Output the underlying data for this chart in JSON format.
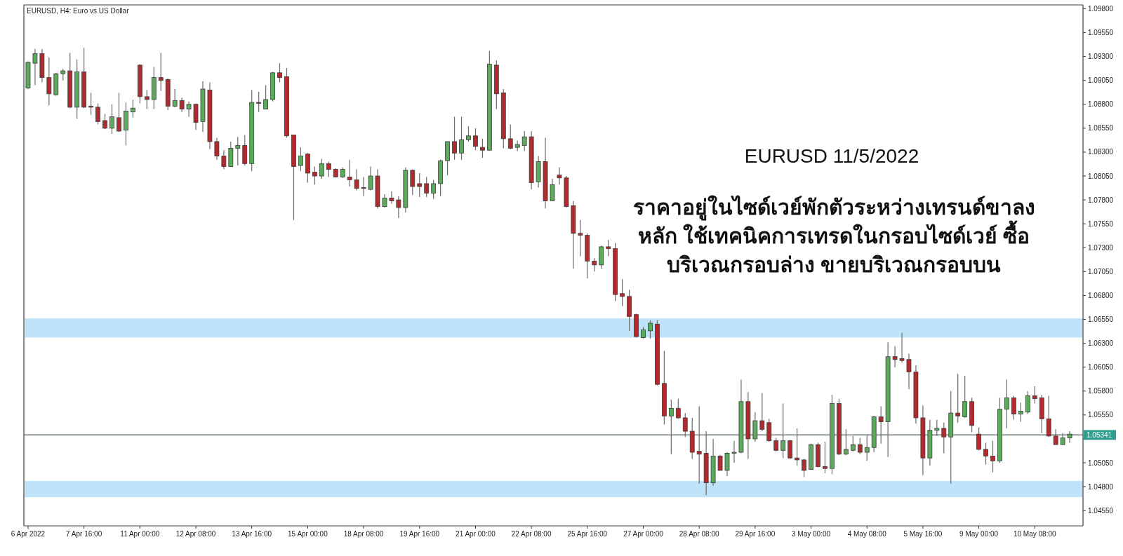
{
  "chart_data": {
    "type": "candlestick",
    "title": "EURUSD, H4: Euro vs US Dollar",
    "categories": [
      "6 Apr 2022",
      null,
      null,
      null,
      null,
      null,
      null,
      null,
      "7 Apr 16:00",
      null,
      null,
      null,
      null,
      null,
      null,
      null,
      "11 Apr 00:00",
      null,
      null,
      null,
      null,
      null,
      null,
      null,
      "12 Apr 08:00",
      null,
      null,
      null,
      null,
      null,
      null,
      null,
      "13 Apr 16:00",
      null,
      null,
      null,
      null,
      null,
      null,
      null,
      "15 Apr 00:00",
      null,
      null,
      null,
      null,
      null,
      null,
      null,
      "18 Apr 08:00",
      null,
      null,
      null,
      null,
      null,
      null,
      null,
      "19 Apr 16:00",
      null,
      null,
      null,
      null,
      null,
      null,
      null,
      "21 Apr 00:00",
      null,
      null,
      null,
      null,
      null,
      null,
      null,
      "22 Apr 08:00",
      null,
      null,
      null,
      null,
      null,
      null,
      null,
      "25 Apr 16:00",
      null,
      null,
      null,
      null,
      null,
      null,
      null,
      "27 Apr 00:00",
      null,
      null,
      null,
      null,
      null,
      null,
      null,
      "28 Apr 08:00",
      null,
      null,
      null,
      null,
      null,
      null,
      null,
      "29 Apr 16:00",
      null,
      null,
      null,
      null,
      null,
      null,
      null,
      "3 May 00:00",
      null,
      null,
      null,
      null,
      null,
      null,
      null,
      "4 May 08:00",
      null,
      null,
      null,
      null,
      null,
      null,
      null,
      "5 May 16:00",
      null,
      null,
      null,
      null,
      null,
      null,
      null,
      "9 May 00:00",
      null,
      null,
      null,
      null,
      null,
      null,
      null,
      "10 May 08:00",
      null,
      null,
      null,
      null,
      null
    ],
    "ohlc": [
      [
        1.0897,
        1.0925,
        1.0896,
        1.0924
      ],
      [
        1.0923,
        1.0938,
        1.09,
        1.0933
      ],
      [
        1.0933,
        1.0938,
        1.0903,
        1.0908
      ],
      [
        1.0908,
        1.0929,
        1.0879,
        1.0891
      ],
      [
        1.089,
        1.0913,
        1.0889,
        1.0912
      ],
      [
        1.0912,
        1.0917,
        1.0905,
        1.0915
      ],
      [
        1.0915,
        1.0934,
        1.0876,
        1.0877
      ],
      [
        1.0877,
        1.0927,
        1.0865,
        1.0914
      ],
      [
        1.0914,
        1.0939,
        1.0876,
        1.0877
      ],
      [
        1.0878,
        1.0892,
        1.0869,
        1.0877
      ],
      [
        1.0877,
        1.0881,
        1.0859,
        1.0862
      ],
      [
        1.0863,
        1.087,
        1.0854,
        1.0855
      ],
      [
        1.0855,
        1.088,
        1.0849,
        1.0867
      ],
      [
        1.0866,
        1.0892,
        1.0851,
        1.0852
      ],
      [
        1.0853,
        1.0882,
        1.0837,
        1.0873
      ],
      [
        1.0872,
        1.0885,
        1.0866,
        1.0876
      ],
      [
        1.0921,
        1.0922,
        1.0881,
        1.0888
      ],
      [
        1.0888,
        1.0895,
        1.0875,
        1.0885
      ],
      [
        1.0885,
        1.0919,
        1.0875,
        1.0908
      ],
      [
        1.0908,
        1.0934,
        1.0894,
        1.0905
      ],
      [
        1.0906,
        1.0907,
        1.0874,
        1.0878
      ],
      [
        1.0878,
        1.0896,
        1.0877,
        1.0884
      ],
      [
        1.0884,
        1.0887,
        1.0872,
        1.0875
      ],
      [
        1.0875,
        1.0883,
        1.0867,
        1.088
      ],
      [
        1.088,
        1.0881,
        1.0853,
        1.0861
      ],
      [
        1.0862,
        1.0904,
        1.0851,
        1.0896
      ],
      [
        1.0895,
        1.0903,
        1.0833,
        1.0841
      ],
      [
        1.0841,
        1.0845,
        1.0822,
        1.0826
      ],
      [
        1.0826,
        1.0832,
        1.0812,
        1.0815
      ],
      [
        1.0815,
        1.0841,
        1.0815,
        1.0834
      ],
      [
        1.0834,
        1.0846,
        1.0816,
        1.0837
      ],
      [
        1.0837,
        1.0848,
        1.0816,
        1.0818
      ],
      [
        1.0818,
        1.0895,
        1.081,
        1.0882
      ],
      [
        1.0882,
        1.0893,
        1.0872,
        1.0881
      ],
      [
        1.0875,
        1.09,
        1.0875,
        1.0885
      ],
      [
        1.0885,
        1.0914,
        1.0883,
        1.0913
      ],
      [
        1.0913,
        1.0923,
        1.0903,
        1.0908
      ],
      [
        1.0909,
        1.0918,
        1.0845,
        1.0847
      ],
      [
        1.0848,
        1.0848,
        1.0759,
        1.0815
      ],
      [
        1.0816,
        1.0835,
        1.081,
        1.0826
      ],
      [
        1.0828,
        1.0829,
        1.0798,
        1.0808
      ],
      [
        1.0809,
        1.0815,
        1.0796,
        1.0805
      ],
      [
        1.0805,
        1.0823,
        1.0802,
        1.0818
      ],
      [
        1.0818,
        1.082,
        1.0804,
        1.0812
      ],
      [
        1.0812,
        1.0813,
        1.0804,
        1.0804
      ],
      [
        1.0804,
        1.0814,
        1.0803,
        1.0812
      ],
      [
        1.0804,
        1.0822,
        1.0794,
        1.0801
      ],
      [
        1.0801,
        1.0812,
        1.079,
        1.0792
      ],
      [
        1.0793,
        1.0804,
        1.0784,
        1.0792
      ],
      [
        1.0791,
        1.0815,
        1.079,
        1.0805
      ],
      [
        1.0805,
        1.0812,
        1.0771,
        1.0773
      ],
      [
        1.0773,
        1.0786,
        1.0772,
        1.0782
      ],
      [
        1.0782,
        1.0789,
        1.0776,
        1.0779
      ],
      [
        1.078,
        1.0784,
        1.0761,
        1.0772
      ],
      [
        1.0772,
        1.0814,
        1.0767,
        1.0811
      ],
      [
        1.0811,
        1.0812,
        1.0785,
        1.0794
      ],
      [
        1.0797,
        1.0808,
        1.0783,
        1.0794
      ],
      [
        1.0797,
        1.0804,
        1.0783,
        1.0787
      ],
      [
        1.0787,
        1.0801,
        1.0781,
        1.0797
      ],
      [
        1.0797,
        1.0822,
        1.0784,
        1.0821
      ],
      [
        1.0821,
        1.0841,
        1.0806,
        1.0841
      ],
      [
        1.0841,
        1.0867,
        1.0822,
        1.0829
      ],
      [
        1.0829,
        1.0867,
        1.0822,
        1.0843
      ],
      [
        1.0843,
        1.0857,
        1.0841,
        1.0847
      ],
      [
        1.0847,
        1.0855,
        1.0832,
        1.0836
      ],
      [
        1.0835,
        1.0844,
        1.0824,
        1.0832
      ],
      [
        1.0832,
        1.0936,
        1.0832,
        1.0922
      ],
      [
        1.0921,
        1.0926,
        1.0875,
        1.0891
      ],
      [
        1.0892,
        1.0896,
        1.0834,
        1.0844
      ],
      [
        1.0844,
        1.0859,
        1.0833,
        1.0834
      ],
      [
        1.0835,
        1.0842,
        1.0831,
        1.0838
      ],
      [
        1.0837,
        1.0852,
        1.0831,
        1.0846
      ],
      [
        1.0846,
        1.0852,
        1.0791,
        1.0798
      ],
      [
        1.0799,
        1.0826,
        1.0793,
        1.082
      ],
      [
        1.082,
        1.0845,
        1.0771,
        1.0779
      ],
      [
        1.0779,
        1.0802,
        1.0779,
        1.0796
      ],
      [
        1.0806,
        1.0814,
        1.0796,
        1.0803
      ],
      [
        1.0803,
        1.0805,
        1.0772,
        1.0773
      ],
      [
        1.0774,
        1.0779,
        1.0708,
        1.0745
      ],
      [
        1.0745,
        1.0759,
        1.0721,
        1.0743
      ],
      [
        1.0743,
        1.0745,
        1.0698,
        1.0716
      ],
      [
        1.0716,
        1.0719,
        1.0705,
        1.0712
      ],
      [
        1.0712,
        1.0732,
        1.0708,
        1.0731
      ],
      [
        1.0731,
        1.0738,
        1.0721,
        1.0729
      ],
      [
        1.0729,
        1.0735,
        1.0674,
        1.0681
      ],
      [
        1.0682,
        1.0697,
        1.0669,
        1.0679
      ],
      [
        1.0679,
        1.0686,
        1.0643,
        1.0658
      ],
      [
        1.066,
        1.0661,
        1.0636,
        1.0637
      ],
      [
        1.0636,
        1.0647,
        1.0635,
        1.0644
      ],
      [
        1.0643,
        1.0654,
        1.0635,
        1.0651
      ],
      [
        1.065,
        1.0654,
        1.0586,
        1.0587
      ],
      [
        1.0588,
        1.0622,
        1.0545,
        1.0554
      ],
      [
        1.0554,
        1.0571,
        1.0514,
        1.0562
      ],
      [
        1.0562,
        1.0572,
        1.0551,
        1.0552
      ],
      [
        1.0552,
        1.0557,
        1.0532,
        1.0538
      ],
      [
        1.0538,
        1.0552,
        1.0509,
        1.0516
      ],
      [
        1.0517,
        1.0564,
        1.0483,
        1.0514
      ],
      [
        1.0515,
        1.0538,
        1.0471,
        1.0484
      ],
      [
        1.0484,
        1.053,
        1.0481,
        1.0512
      ],
      [
        1.0512,
        1.0513,
        1.0497,
        1.0497
      ],
      [
        1.0497,
        1.0516,
        1.0491,
        1.0515
      ],
      [
        1.0515,
        1.0528,
        1.0505,
        1.0516
      ],
      [
        1.0516,
        1.0592,
        1.0515,
        1.0569
      ],
      [
        1.0569,
        1.0579,
        1.0509,
        1.053
      ],
      [
        1.053,
        1.0558,
        1.0527,
        1.0549
      ],
      [
        1.0549,
        1.0578,
        1.0538,
        1.054
      ],
      [
        1.0547,
        1.0551,
        1.0527,
        1.0528
      ],
      [
        1.0528,
        1.0531,
        1.0517,
        1.0518
      ],
      [
        1.0518,
        1.0567,
        1.051,
        1.0528
      ],
      [
        1.0528,
        1.0529,
        1.0509,
        1.051
      ],
      [
        1.051,
        1.0541,
        1.0502,
        1.0508
      ],
      [
        1.0508,
        1.0509,
        1.049,
        1.0497
      ],
      [
        1.0498,
        1.0525,
        1.0498,
        1.0524
      ],
      [
        1.0524,
        1.0526,
        1.05,
        1.0501
      ],
      [
        1.0501,
        1.0527,
        1.0494,
        1.0499
      ],
      [
        1.0499,
        1.0576,
        1.0493,
        1.0567
      ],
      [
        1.0567,
        1.0572,
        1.0513,
        1.0514
      ],
      [
        1.0514,
        1.054,
        1.0513,
        1.0519
      ],
      [
        1.0518,
        1.0533,
        1.0517,
        1.0524
      ],
      [
        1.0524,
        1.0531,
        1.0514,
        1.0516
      ],
      [
        1.0516,
        1.0534,
        1.0507,
        1.0521
      ],
      [
        1.0521,
        1.0554,
        1.0516,
        1.0553
      ],
      [
        1.0553,
        1.0564,
        1.0525,
        1.0548
      ],
      [
        1.0548,
        1.0631,
        1.0511,
        1.0616
      ],
      [
        1.0616,
        1.0627,
        1.0605,
        1.0613
      ],
      [
        1.0614,
        1.0641,
        1.061,
        1.0612
      ],
      [
        1.0613,
        1.0619,
        1.0582,
        1.06
      ],
      [
        1.06,
        1.0607,
        1.0546,
        1.0552
      ],
      [
        1.0552,
        1.0565,
        1.0492,
        1.051
      ],
      [
        1.051,
        1.055,
        1.0502,
        1.0539
      ],
      [
        1.0539,
        1.055,
        1.0533,
        1.0541
      ],
      [
        1.0541,
        1.0547,
        1.0515,
        1.0532
      ],
      [
        1.0532,
        1.058,
        1.0483,
        1.0557
      ],
      [
        1.0557,
        1.0598,
        1.0547,
        1.0554
      ],
      [
        1.0553,
        1.0596,
        1.0552,
        1.0569
      ],
      [
        1.0569,
        1.0573,
        1.0537,
        1.0544
      ],
      [
        1.0535,
        1.0542,
        1.0518,
        1.0519
      ],
      [
        1.0519,
        1.0526,
        1.0503,
        1.0512
      ],
      [
        1.0512,
        1.0528,
        1.0495,
        1.0507
      ],
      [
        1.0507,
        1.0573,
        1.0505,
        1.0561
      ],
      [
        1.0561,
        1.0592,
        1.0541,
        1.0573
      ],
      [
        1.0573,
        1.0575,
        1.055,
        1.0556
      ],
      [
        1.0556,
        1.0568,
        1.0548,
        1.0559
      ],
      [
        1.0558,
        1.058,
        1.0556,
        1.0575
      ],
      [
        1.0575,
        1.0585,
        1.0567,
        1.0572
      ],
      [
        1.0573,
        1.0576,
        1.0536,
        1.0551
      ],
      [
        1.0551,
        1.0575,
        1.0532,
        1.0533
      ],
      [
        1.0533,
        1.054,
        1.0524,
        1.0524
      ],
      [
        1.0524,
        1.0536,
        1.0524,
        1.0531
      ],
      [
        1.0531,
        1.0538,
        1.0526,
        1.0535
      ]
    ],
    "colors": [
      "#5aab5a",
      "#5aab5a",
      "#b22a2e",
      "#b22a2e",
      "#5aab5a",
      "#5aab5a",
      "#b22a2e",
      "#5aab5a",
      "#b22a2e",
      "#b22a2e",
      "#b22a2e",
      "#b22a2e",
      "#5aab5a",
      "#b22a2e",
      "#5aab5a",
      "#5aab5a",
      "#b22a2e",
      "#b22a2e",
      "#5aab5a",
      "#b22a2e",
      "#b22a2e",
      "#5aab5a",
      "#b22a2e",
      "#5aab5a",
      "#b22a2e",
      "#5aab5a",
      "#b22a2e",
      "#b22a2e",
      "#b22a2e",
      "#5aab5a",
      "#5aab5a",
      "#b22a2e",
      "#5aab5a",
      "#b22a2e",
      "#5aab5a",
      "#5aab5a",
      "#b22a2e",
      "#b22a2e",
      "#b22a2e",
      "#5aab5a",
      "#b22a2e",
      "#b22a2e",
      "#5aab5a",
      "#b22a2e",
      "#b22a2e",
      "#5aab5a",
      "#b22a2e",
      "#b22a2e",
      "#b22a2e",
      "#5aab5a",
      "#b22a2e",
      "#5aab5a",
      "#b22a2e",
      "#b22a2e",
      "#5aab5a",
      "#b22a2e",
      "#b22a2e",
      "#b22a2e",
      "#5aab5a",
      "#5aab5a",
      "#5aab5a",
      "#b22a2e",
      "#5aab5a",
      "#5aab5a",
      "#b22a2e",
      "#b22a2e",
      "#5aab5a",
      "#b22a2e",
      "#b22a2e",
      "#b22a2e",
      "#5aab5a",
      "#5aab5a",
      "#b22a2e",
      "#5aab5a",
      "#b22a2e",
      "#5aab5a",
      "#b22a2e",
      "#b22a2e",
      "#b22a2e",
      "#b22a2e",
      "#b22a2e",
      "#b22a2e",
      "#5aab5a",
      "#b22a2e",
      "#b22a2e",
      "#b22a2e",
      "#b22a2e",
      "#b22a2e",
      "#5aab5a",
      "#5aab5a",
      "#b22a2e",
      "#b22a2e",
      "#5aab5a",
      "#b22a2e",
      "#b22a2e",
      "#b22a2e",
      "#b22a2e",
      "#b22a2e",
      "#5aab5a",
      "#b22a2e",
      "#5aab5a",
      "#5aab5a",
      "#5aab5a",
      "#b22a2e",
      "#5aab5a",
      "#b22a2e",
      "#b22a2e",
      "#b22a2e",
      "#5aab5a",
      "#b22a2e",
      "#b22a2e",
      "#b22a2e",
      "#5aab5a",
      "#b22a2e",
      "#b22a2e",
      "#5aab5a",
      "#b22a2e",
      "#5aab5a",
      "#5aab5a",
      "#b22a2e",
      "#5aab5a",
      "#5aab5a",
      "#b22a2e",
      "#5aab5a",
      "#b22a2e",
      "#b22a2e",
      "#b22a2e",
      "#b22a2e",
      "#b22a2e",
      "#5aab5a",
      "#5aab5a",
      "#b22a2e",
      "#5aab5a",
      "#b22a2e",
      "#5aab5a",
      "#b22a2e",
      "#b22a2e",
      "#b22a2e",
      "#b22a2e",
      "#5aab5a",
      "#5aab5a",
      "#b22a2e",
      "#5aab5a",
      "#5aab5a",
      "#b22a2e",
      "#b22a2e",
      "#b22a2e",
      "#b22a2e",
      "#5aab5a",
      "#5aab5a"
    ],
    "ylim": [
      1.0439,
      1.0984
    ],
    "yticks": [
      {
        "value": 1.0455,
        "label": "1.04550"
      },
      {
        "value": 1.048,
        "label": "1.04800"
      },
      {
        "value": 1.0505,
        "label": "1.05050"
      },
      {
        "value": 1.053,
        "label": null
      },
      {
        "value": 1.0555,
        "label": "1.05550"
      },
      {
        "value": 1.058,
        "label": "1.05800"
      },
      {
        "value": 1.0605,
        "label": "1.06050"
      },
      {
        "value": 1.063,
        "label": "1.06300"
      },
      {
        "value": 1.0655,
        "label": "1.06550"
      },
      {
        "value": 1.068,
        "label": "1.06800"
      },
      {
        "value": 1.0705,
        "label": "1.07050"
      },
      {
        "value": 1.073,
        "label": "1.07300"
      },
      {
        "value": 1.0755,
        "label": "1.07550"
      },
      {
        "value": 1.078,
        "label": "1.07800"
      },
      {
        "value": 1.0805,
        "label": "1.08050"
      },
      {
        "value": 1.083,
        "label": "1.08300"
      },
      {
        "value": 1.0855,
        "label": "1.08550"
      },
      {
        "value": 1.088,
        "label": "1.08800"
      },
      {
        "value": 1.0905,
        "label": "1.09050"
      },
      {
        "value": 1.093,
        "label": "1.09300"
      },
      {
        "value": 1.0955,
        "label": "1.09550"
      },
      {
        "value": 1.098,
        "label": "1.09800"
      }
    ],
    "ref_lines": [
      {
        "axis": "y",
        "value": 1.05341,
        "label": "1.05341",
        "color": "#aab3b0"
      }
    ],
    "bands": [
      {
        "axis": "y",
        "from": 1.0636,
        "to": 1.0656,
        "color": "#bfe3f8"
      },
      {
        "axis": "y",
        "from": 1.0469,
        "to": 1.0486,
        "color": "#bfe3f8"
      }
    ],
    "annotations": [
      "EURUSD 11/5/2022",
      "ราคาอยู่ในไซด์เวย์พักตัวระหว่างเทรนด์ขาลง\nหลัก ใช้เทคนิคการเทรดในกรอบไซด์เวย์ ซื้อ\nบริเวณกรอบล่าง ขายบริเวณกรอบบน"
    ]
  }
}
